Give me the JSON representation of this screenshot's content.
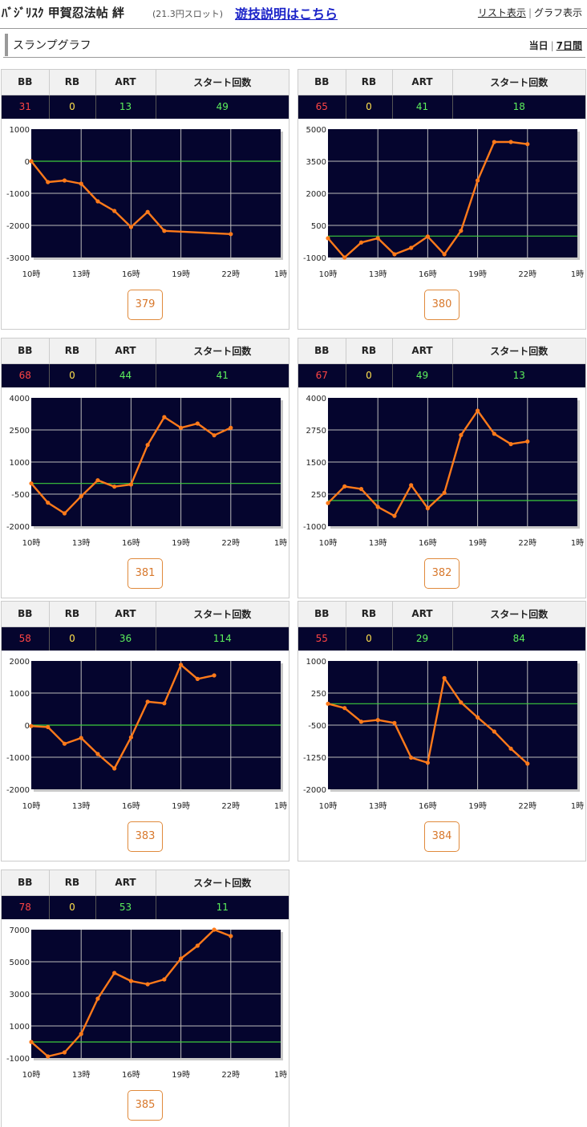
{
  "header": {
    "brand": "ﾊﾞｼﾞﾘｽｸ 甲賀忍法帖 絆",
    "price": "(21.3円スロット)",
    "rule_link": "遊技説明はこちら",
    "list_view": "リスト表示",
    "view_sep": "|",
    "graph_view": "グラフ表示"
  },
  "section": {
    "title": "スランプグラフ",
    "today": "当日",
    "sep": "|",
    "week": "7日間"
  },
  "table_headers": {
    "bb": "BB",
    "rb": "RB",
    "art": "ART",
    "start": "スタート回数"
  },
  "colors": {
    "plot_bg": "#05052e",
    "line": "#ff7a1a",
    "zero_line": "#3ccc3c",
    "grid": "#bbbbbb",
    "bb": "#ff4444",
    "rb": "#ffe14d",
    "art": "#5cf05c"
  },
  "machines": [
    {
      "number": "379",
      "bb": "31",
      "rb": "0",
      "art": "13",
      "start": "49"
    },
    {
      "number": "380",
      "bb": "65",
      "rb": "0",
      "art": "41",
      "start": "18"
    },
    {
      "number": "381",
      "bb": "68",
      "rb": "0",
      "art": "44",
      "start": "41"
    },
    {
      "number": "382",
      "bb": "67",
      "rb": "0",
      "art": "49",
      "start": "13"
    },
    {
      "number": "383",
      "bb": "58",
      "rb": "0",
      "art": "36",
      "start": "114"
    },
    {
      "number": "384",
      "bb": "55",
      "rb": "0",
      "art": "29",
      "start": "84"
    },
    {
      "number": "385",
      "bb": "78",
      "rb": "0",
      "art": "53",
      "start": "11"
    }
  ],
  "chart_data": [
    {
      "type": "line",
      "machine": "379",
      "xlim": [
        10,
        25
      ],
      "x_ticks": [
        "10時",
        "13時",
        "16時",
        "19時",
        "22時",
        "1時"
      ],
      "ylim": [
        -3000,
        1000
      ],
      "y_ticks": [
        "1000",
        "0",
        "-1000",
        "-2000",
        "-3000"
      ],
      "baseline": 0,
      "x": [
        10,
        11,
        12,
        13,
        14,
        15,
        16,
        17,
        18,
        22
      ],
      "y": [
        0,
        -650,
        -600,
        -700,
        -1250,
        -1550,
        -2050,
        -1580,
        -2170,
        -2270
      ]
    },
    {
      "type": "line",
      "machine": "380",
      "xlim": [
        10,
        25
      ],
      "x_ticks": [
        "10時",
        "13時",
        "16時",
        "19時",
        "22時",
        "1時"
      ],
      "ylim": [
        -1000,
        5000
      ],
      "y_ticks": [
        "5000",
        "3500",
        "2000",
        "500",
        "-1000"
      ],
      "baseline": 0,
      "x": [
        10,
        11,
        12,
        13,
        14,
        15,
        16,
        17,
        18,
        19,
        20,
        21,
        22
      ],
      "y": [
        -100,
        -1000,
        -300,
        -100,
        -850,
        -550,
        -20,
        -850,
        250,
        2600,
        4400,
        4400,
        4300
      ]
    },
    {
      "type": "line",
      "machine": "381",
      "xlim": [
        10,
        25
      ],
      "x_ticks": [
        "10時",
        "13時",
        "16時",
        "19時",
        "22時",
        "1時"
      ],
      "ylim": [
        -2000,
        4000
      ],
      "y_ticks": [
        "4000",
        "2500",
        "1000",
        "-500",
        "-2000"
      ],
      "baseline": 0,
      "x": [
        10,
        11,
        12,
        13,
        14,
        15,
        16,
        17,
        18,
        19,
        20,
        21,
        22
      ],
      "y": [
        0,
        -900,
        -1400,
        -600,
        150,
        -150,
        -50,
        1800,
        3100,
        2600,
        2800,
        2250,
        2600
      ]
    },
    {
      "type": "line",
      "machine": "382",
      "xlim": [
        10,
        25
      ],
      "x_ticks": [
        "10時",
        "13時",
        "16時",
        "19時",
        "22時",
        "1時"
      ],
      "ylim": [
        -1000,
        4000
      ],
      "y_ticks": [
        "4000",
        "2750",
        "1500",
        "250",
        "-1000"
      ],
      "baseline": 0,
      "x": [
        10,
        11,
        12,
        13,
        14,
        15,
        16,
        17,
        18,
        19,
        20,
        21,
        22
      ],
      "y": [
        -100,
        550,
        450,
        -250,
        -600,
        600,
        -300,
        300,
        2550,
        3500,
        2600,
        2200,
        2300
      ]
    },
    {
      "type": "line",
      "machine": "383",
      "xlim": [
        10,
        25
      ],
      "x_ticks": [
        "10時",
        "13時",
        "16時",
        "19時",
        "22時",
        "1時"
      ],
      "ylim": [
        -2000,
        2000
      ],
      "y_ticks": [
        "2000",
        "1000",
        "0",
        "-1000",
        "-2000"
      ],
      "baseline": 0,
      "x": [
        10,
        11,
        12,
        13,
        14,
        15,
        16,
        17,
        18,
        19,
        20,
        21
      ],
      "y": [
        -30,
        -60,
        -580,
        -400,
        -900,
        -1350,
        -380,
        730,
        680,
        1880,
        1440,
        1550
      ]
    },
    {
      "type": "line",
      "machine": "384",
      "xlim": [
        10,
        25
      ],
      "x_ticks": [
        "10時",
        "13時",
        "16時",
        "19時",
        "22時",
        "1時"
      ],
      "ylim": [
        -2000,
        1000
      ],
      "y_ticks": [
        "1000",
        "250",
        "-500",
        "-1250",
        "-2000"
      ],
      "baseline": 0,
      "x": [
        10,
        11,
        12,
        13,
        14,
        15,
        16,
        17,
        18,
        19,
        20,
        21,
        22
      ],
      "y": [
        0,
        -100,
        -420,
        -380,
        -450,
        -1260,
        -1380,
        600,
        30,
        -320,
        -650,
        -1050,
        -1400
      ]
    },
    {
      "type": "line",
      "machine": "385",
      "xlim": [
        10,
        25
      ],
      "x_ticks": [
        "10時",
        "13時",
        "16時",
        "19時",
        "22時",
        "1時"
      ],
      "ylim": [
        -1000,
        7000
      ],
      "y_ticks": [
        "7000",
        "5000",
        "3000",
        "1000",
        "-1000"
      ],
      "baseline": 0,
      "x": [
        10,
        11,
        12,
        13,
        14,
        15,
        16,
        17,
        18,
        19,
        20,
        21,
        22
      ],
      "y": [
        0,
        -900,
        -650,
        500,
        2700,
        4300,
        3800,
        3600,
        3900,
        5200,
        6000,
        7000,
        6600
      ]
    }
  ]
}
